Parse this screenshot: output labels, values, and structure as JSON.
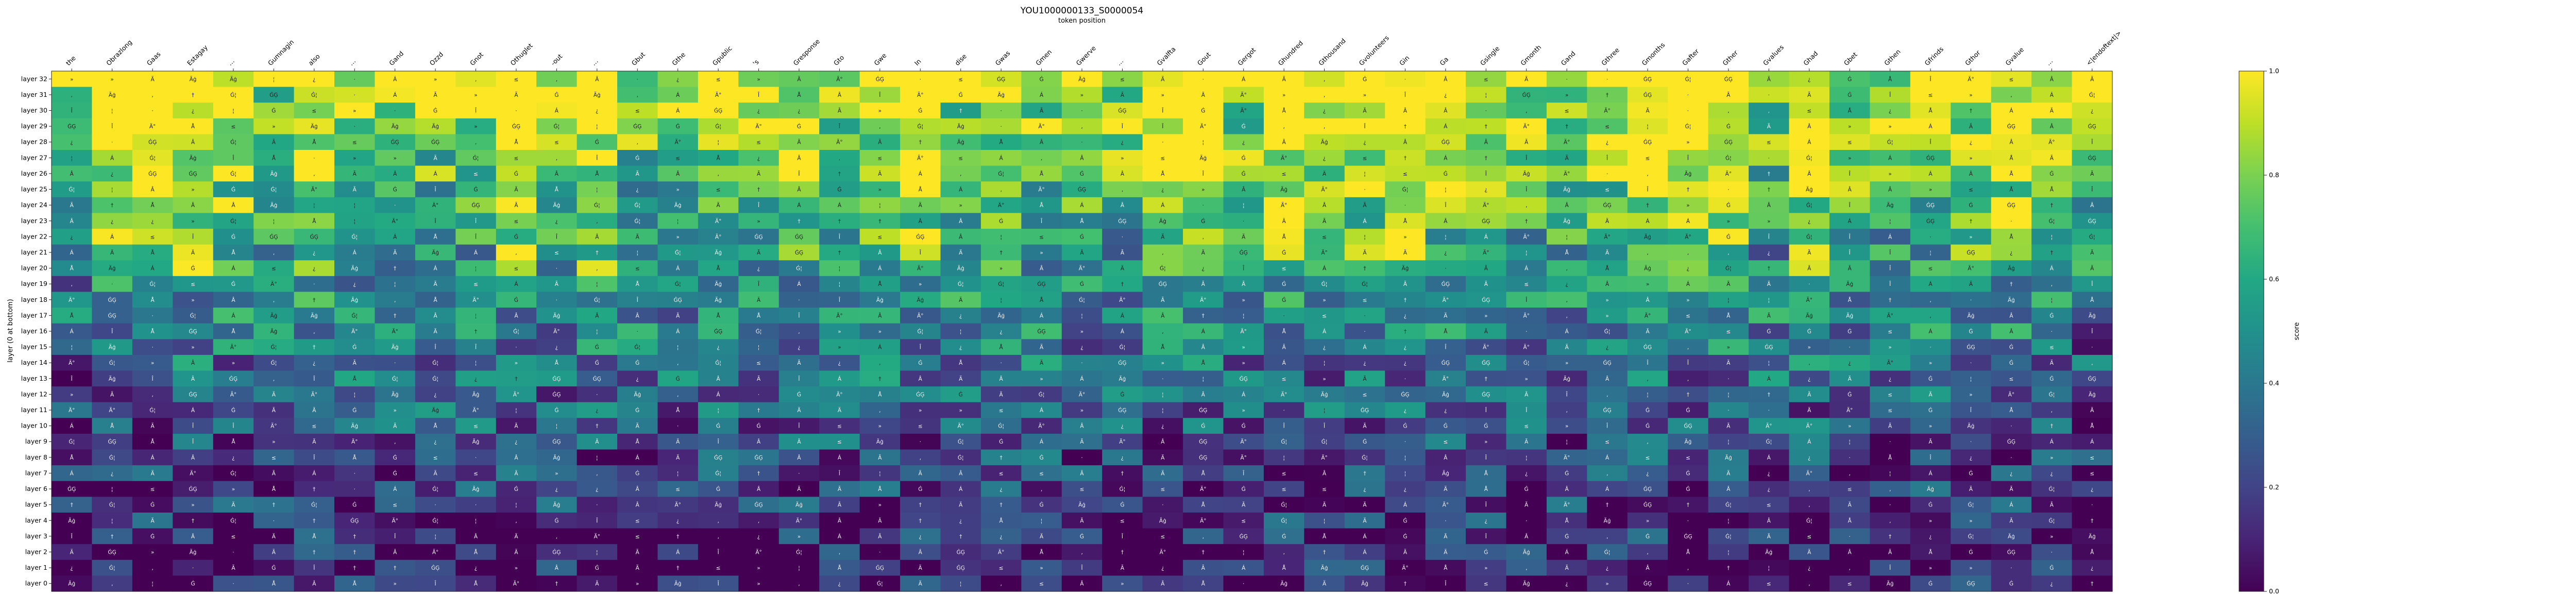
{
  "chart_data": {
    "type": "heatmap",
    "title": "YOU1000000133_S0000054",
    "subtitle": "token position",
    "ylabel": "layer (0 at bottom)",
    "colorbar_label": "score",
    "colormap": "viridis",
    "vmin": 0.0,
    "vmax": 1.0,
    "colorbar_ticks": [
      "0.0",
      "0.2",
      "0.4",
      "0.6",
      "0.8",
      "1.0"
    ],
    "tokens": [
      "the",
      "Obrazlong",
      "Gaas",
      "Estagay",
      "…",
      "Gumnagin",
      "also",
      "…",
      "Gand",
      "Ozzd",
      "Gnot",
      "Othuglet",
      "-out",
      "…",
      "Gbut",
      "Gthe",
      "Gpublic",
      "'s",
      "Gresponse",
      "Gto",
      "Gwe",
      "In",
      "dise",
      "Gwas",
      "Gmen",
      "Gwerve",
      "…",
      "Gvalfta",
      "Gout",
      "Gergot",
      "Ghundred",
      "Gthousand",
      "Gvolunteers",
      "Gin",
      "Ga",
      "Gsingle",
      "Gmonth",
      "Gand",
      "Gthree",
      "Gmonths",
      "Gafter",
      "Gther",
      "Gvalues",
      "Ghad",
      "Gbet",
      "Gthen",
      "Gfrinds",
      "Gthor",
      "Gvalue",
      "…",
      "<|endoftext|>"
    ],
    "layers": [
      "layer 32",
      "layer 31",
      "layer 30",
      "layer 29",
      "layer 28",
      "layer 27",
      "layer 26",
      "layer 25",
      "layer 24",
      "layer 23",
      "layer 22",
      "layer 21",
      "layer 20",
      "layer 19",
      "layer 18",
      "layer 17",
      "layer 16",
      "layer 15",
      "layer 14",
      "layer 13",
      "layer 12",
      "layer 11",
      "layer 10",
      "layer 9",
      "layer 8",
      "layer 7",
      "layer 6",
      "layer 5",
      "layer 4",
      "layer 3",
      "layer 2",
      "layer 1",
      "layer 0"
    ],
    "cell_glyphs": [
      "Ä",
      "Ä°",
      "Ġ",
      "Ġ¦",
      "‚",
      "·",
      "≤",
      "»",
      "Î",
      "†",
      "¦",
      "ĠĢ",
      "Å",
      "Ã",
      "¿",
      "Äģ",
      "Á",
      "Â"
    ]
  }
}
